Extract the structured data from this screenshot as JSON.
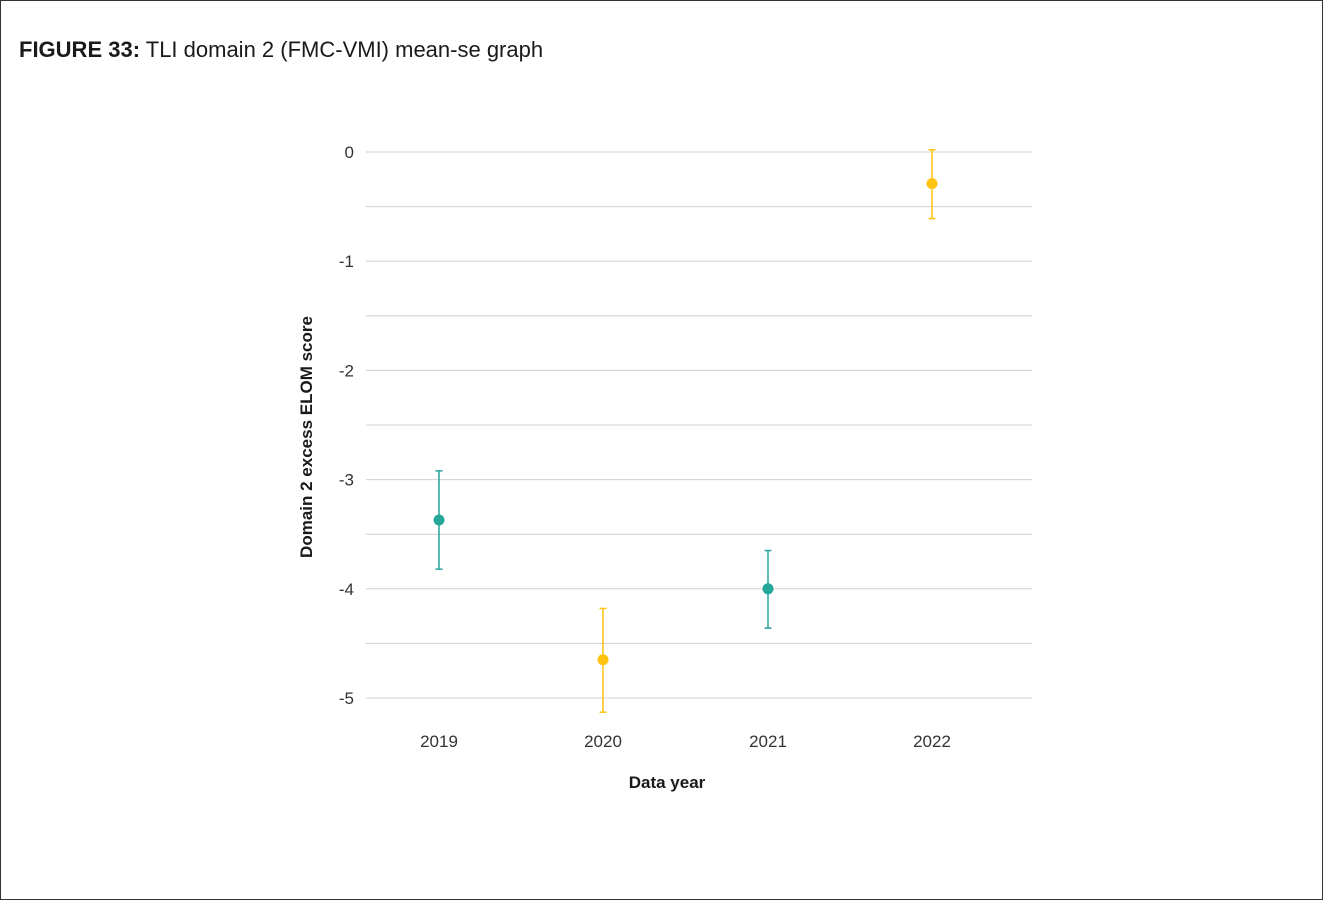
{
  "caption": {
    "label": "FIGURE 33:",
    "text": "TLI domain 2 (FMC-VMI) mean-se graph"
  },
  "chart_data": {
    "type": "scatter",
    "title": "",
    "xlabel": "Data year",
    "ylabel": "Domain 2 excess ELOM score",
    "categories": [
      "2019",
      "2020",
      "2021",
      "2022"
    ],
    "ylim": [
      -5,
      0
    ],
    "yticks": [
      0,
      -1,
      -2,
      -3,
      -4,
      -5
    ],
    "ytick_labels": [
      "0",
      "-1",
      "-2",
      "-3",
      "-4",
      "-5"
    ],
    "grid": true,
    "points": [
      {
        "x": "2019",
        "mean": -3.37,
        "lower": -3.82,
        "upper": -2.92,
        "color": "#26a69a"
      },
      {
        "x": "2020",
        "mean": -4.65,
        "lower": -5.13,
        "upper": -4.18,
        "color": "#ffc20e"
      },
      {
        "x": "2021",
        "mean": -4.0,
        "lower": -4.36,
        "upper": -3.65,
        "color": "#26a69a"
      },
      {
        "x": "2022",
        "mean": -0.29,
        "lower": -0.61,
        "upper": 0.02,
        "color": "#ffc20e"
      }
    ]
  }
}
